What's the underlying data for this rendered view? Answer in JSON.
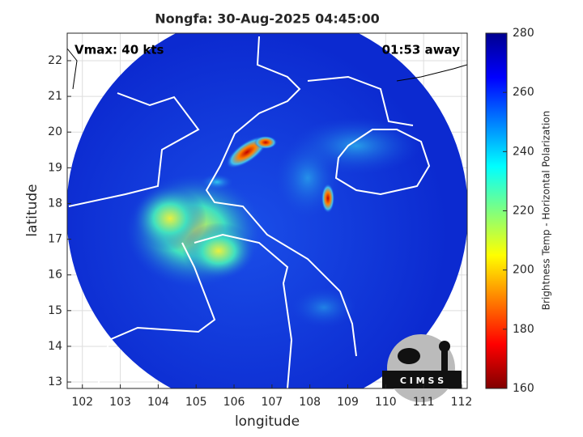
{
  "chart_data": {
    "type": "image",
    "title": "Nongfa: 30-Aug-2025 04:45:00",
    "annotations": [
      "Vmax: 40 kts",
      "01:53 away"
    ],
    "x_label": "longitude",
    "y_label": "latitude",
    "xlim": [
      101.6,
      112.15
    ],
    "ylim": [
      12.82,
      22.77
    ],
    "xticks": [
      102,
      103,
      104,
      105,
      106,
      107,
      108,
      109,
      110,
      111,
      112
    ],
    "yticks": [
      13,
      14,
      15,
      16,
      17,
      18,
      19,
      20,
      21,
      22
    ],
    "grid": true,
    "colorbar": {
      "label": "Brightness Temp - Horizontal Polarization",
      "lim": [
        160,
        280
      ],
      "ticks": [
        160,
        180,
        200,
        220,
        240,
        260,
        280
      ]
    },
    "logo": "C I M S S"
  }
}
